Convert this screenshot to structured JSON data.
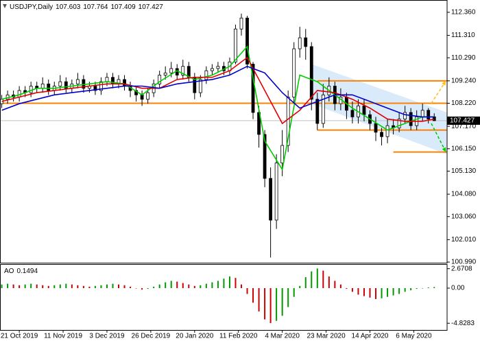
{
  "chart_data": [
    {
      "type": "candlestick",
      "title": "USDJPY,Daily",
      "open": [
        108.2,
        108.4,
        108.6,
        108.5,
        108.8,
        108.7,
        109.0,
        108.9,
        109.1,
        108.8,
        109.0,
        109.2,
        108.9,
        109.1,
        109.3,
        108.9,
        109.0,
        108.8,
        109.2,
        109.4,
        109.1,
        109.3,
        109.0,
        108.8,
        108.6,
        108.4,
        108.7,
        109.1,
        109.5,
        109.6,
        109.8,
        109.5,
        109.9,
        109.4,
        108.7,
        109.3,
        109.7,
        109.8,
        109.9,
        109.7,
        110.1,
        111.6,
        112.1,
        110.0,
        107.8,
        106.8,
        104.8,
        102.9,
        105.5,
        106.3,
        108.5,
        110.7,
        111.2,
        110.8,
        108.4,
        107.3,
        108.6,
        109.0,
        108.2,
        108.5,
        107.9,
        107.6,
        108.1,
        107.7,
        107.3,
        106.9,
        106.7,
        107.2,
        107.1,
        107.5,
        107.8,
        107.2,
        107.6,
        107.9,
        107.603
      ],
      "high": [
        108.6,
        108.8,
        108.8,
        109.0,
        109.0,
        109.2,
        109.2,
        109.4,
        109.3,
        109.2,
        109.5,
        109.4,
        109.3,
        109.6,
        109.5,
        109.2,
        109.2,
        109.4,
        109.6,
        109.6,
        109.5,
        109.5,
        109.2,
        109.0,
        108.8,
        108.9,
        109.3,
        109.7,
        109.9,
        110.1,
        110.0,
        110.2,
        110.1,
        109.6,
        109.5,
        109.9,
        110.0,
        110.1,
        110.1,
        110.3,
        111.8,
        112.3,
        112.2,
        110.1,
        108.1,
        107.0,
        105.3,
        105.9,
        107.0,
        108.8,
        111.0,
        111.7,
        111.6,
        111.0,
        108.7,
        109.1,
        109.4,
        109.2,
        108.9,
        108.7,
        108.3,
        108.4,
        108.4,
        107.9,
        107.6,
        107.1,
        107.5,
        107.5,
        107.8,
        108.1,
        108.0,
        107.9,
        108.2,
        108.0,
        107.764
      ],
      "low": [
        108.0,
        108.2,
        108.3,
        108.3,
        108.5,
        108.5,
        108.7,
        108.7,
        108.6,
        108.6,
        108.8,
        108.7,
        108.7,
        108.9,
        108.7,
        108.7,
        108.6,
        108.6,
        109.0,
        108.9,
        108.9,
        108.8,
        108.5,
        108.3,
        108.1,
        108.2,
        108.5,
        108.9,
        109.3,
        109.4,
        109.3,
        109.3,
        109.2,
        108.4,
        108.5,
        109.1,
        109.5,
        109.6,
        109.5,
        109.5,
        110.0,
        111.3,
        109.8,
        107.5,
        106.2,
        104.4,
        101.2,
        102.5,
        104.9,
        106.0,
        108.2,
        110.3,
        110.2,
        107.9,
        107.0,
        107.1,
        108.3,
        107.9,
        107.9,
        107.5,
        107.3,
        107.3,
        107.4,
        107.0,
        106.5,
        106.3,
        106.4,
        106.8,
        106.9,
        107.3,
        107.0,
        107.0,
        107.4,
        107.3,
        107.409
      ],
      "close": [
        108.4,
        108.6,
        108.5,
        108.8,
        108.7,
        109.0,
        108.9,
        109.1,
        108.8,
        109.0,
        109.2,
        108.9,
        109.1,
        109.3,
        108.9,
        109.0,
        108.8,
        109.2,
        109.4,
        109.1,
        109.3,
        109.0,
        108.8,
        108.6,
        108.4,
        108.7,
        109.1,
        109.5,
        109.6,
        109.8,
        109.5,
        109.9,
        109.4,
        108.7,
        109.3,
        109.7,
        109.8,
        109.9,
        109.7,
        110.1,
        111.6,
        112.1,
        110.0,
        107.8,
        106.8,
        104.8,
        102.9,
        105.5,
        106.3,
        108.5,
        110.7,
        111.2,
        110.8,
        108.4,
        107.3,
        108.6,
        109.0,
        108.2,
        108.5,
        107.9,
        107.6,
        108.1,
        107.7,
        107.3,
        106.9,
        106.7,
        107.2,
        107.1,
        107.5,
        107.8,
        107.2,
        107.6,
        107.9,
        107.5,
        107.427
      ],
      "candle_color": "#000000",
      "lines_x": [
        0,
        3,
        6,
        9,
        12,
        15,
        18,
        21,
        24,
        27,
        30,
        33,
        36,
        39,
        42,
        45,
        48,
        51,
        54,
        57,
        60,
        63,
        66,
        69,
        72,
        74
      ],
      "lines": [
        {
          "color": "#00cc00",
          "values": [
            108.4,
            108.6,
            108.9,
            108.9,
            109.0,
            109.1,
            109.2,
            109.1,
            108.6,
            109.2,
            109.7,
            109.3,
            109.5,
            109.9,
            110.8,
            106.5,
            105.2,
            109.5,
            109.2,
            108.6,
            108.0,
            107.5,
            107.0,
            107.3,
            107.6,
            107.6
          ]
        },
        {
          "color": "#e00000",
          "values": [
            108.3,
            108.5,
            108.7,
            108.8,
            108.9,
            109.0,
            109.1,
            109.1,
            108.9,
            108.9,
            109.3,
            109.4,
            109.4,
            109.7,
            110.3,
            108.8,
            107.3,
            107.9,
            108.8,
            108.7,
            108.4,
            108.0,
            107.5,
            107.4,
            107.4,
            107.5
          ]
        },
        {
          "color": "#0000cc",
          "values": [
            107.9,
            108.2,
            108.4,
            108.6,
            108.7,
            108.8,
            108.9,
            109.0,
            109.0,
            108.9,
            109.1,
            109.2,
            109.3,
            109.5,
            109.9,
            109.6,
            108.7,
            108.0,
            108.3,
            108.6,
            108.6,
            108.3,
            108.0,
            107.7,
            107.6,
            107.6
          ]
        }
      ],
      "levels": [
        {
          "value": 108.22,
          "from": -0.3,
          "color": "#ff8000"
        },
        {
          "value": 109.24,
          "from": 54,
          "color": "#ff8000"
        },
        {
          "value": 107.0,
          "from": 54,
          "color": "#ff8000"
        },
        {
          "value": 106.0,
          "from": 67,
          "color": "#ff8000"
        }
      ],
      "channel": {
        "x": [
          53,
          76.2
        ],
        "upper": [
          110.0,
          107.8
        ],
        "lower": [
          108.2,
          105.9
        ],
        "color": "#cfe5fa"
      },
      "projections": [
        {
          "x": [
            73.5,
            76
          ],
          "values": [
            108.22,
            109.24
          ],
          "color": "#ffc020"
        },
        {
          "x": [
            73.5,
            76
          ],
          "values": [
            107.3,
            106.0
          ],
          "color": "#00cc00"
        }
      ],
      "price_line_color": "#c0c0c0",
      "xlim": [
        -0.3,
        76.2
      ],
      "ylim": [
        100.96,
        112.92
      ],
      "yticks": [
        {
          "value": 112.36,
          "label": "112.360"
        },
        {
          "value": 111.31,
          "label": "111.310"
        },
        {
          "value": 110.29,
          "label": "110.290"
        },
        {
          "value": 109.24,
          "label": "109.240"
        },
        {
          "value": 108.22,
          "label": "108.220"
        },
        {
          "value": 107.17,
          "label": "107.170"
        },
        {
          "value": 106.15,
          "label": "106.150"
        },
        {
          "value": 105.13,
          "label": "105.130"
        },
        {
          "value": 104.08,
          "label": "104.080"
        },
        {
          "value": 103.06,
          "label": "103.060"
        },
        {
          "value": 102.01,
          "label": "102.010"
        },
        {
          "value": 100.99,
          "label": "100.990"
        }
      ],
      "xticks": [
        {
          "value": 3,
          "label": "21 Oct 2019"
        },
        {
          "value": 10.5,
          "label": "11 Nov 2019"
        },
        {
          "value": 18,
          "label": "3 Dec 2019"
        },
        {
          "value": 25.5,
          "label": "26 Dec 2019"
        },
        {
          "value": 33,
          "label": "20 Jan 2020"
        },
        {
          "value": 40.5,
          "label": "11 Feb 2020"
        },
        {
          "value": 48,
          "label": "4 Mar 2020"
        },
        {
          "value": 55.5,
          "label": "23 Mar 2020"
        },
        {
          "value": 63,
          "label": "14 Apr 2020"
        },
        {
          "value": 70.5,
          "label": "6 May 2020"
        }
      ]
    },
    {
      "type": "histogram-oscillator",
      "title": "AO",
      "values": [
        0.5,
        0.6,
        0.5,
        0.4,
        0.5,
        0.6,
        0.5,
        0.4,
        0.3,
        0.4,
        0.5,
        0.6,
        0.5,
        0.4,
        0.3,
        0.2,
        0.3,
        0.4,
        0.5,
        0.6,
        0.5,
        0.4,
        0.2,
        0.0,
        -0.2,
        -0.1,
        0.2,
        0.5,
        0.8,
        1.0,
        0.9,
        0.7,
        0.5,
        0.3,
        0.4,
        0.6,
        0.8,
        1.0,
        1.3,
        1.6,
        1.4,
        0.5,
        -0.8,
        -2.0,
        -3.2,
        -4.3,
        -4.8,
        -4.5,
        -3.8,
        -2.6,
        -1.2,
        0.3,
        1.5,
        2.3,
        2.7,
        2.4,
        1.6,
        1.0,
        0.5,
        -0.1,
        -0.5,
        -0.9,
        -1.1,
        -1.3,
        -1.5,
        -1.4,
        -1.2,
        -1.0,
        -0.8,
        -0.5,
        -0.3,
        -0.1,
        0.0,
        0.1,
        0.1494
      ],
      "up_color": "#009900",
      "down_color": "#cc0000",
      "ylim": [
        -5.75,
        3.3
      ],
      "yticks": [
        2.6708,
        {
          "value": 0,
          "label": "0.00"
        },
        -4.8283
      ]
    }
  ]
}
